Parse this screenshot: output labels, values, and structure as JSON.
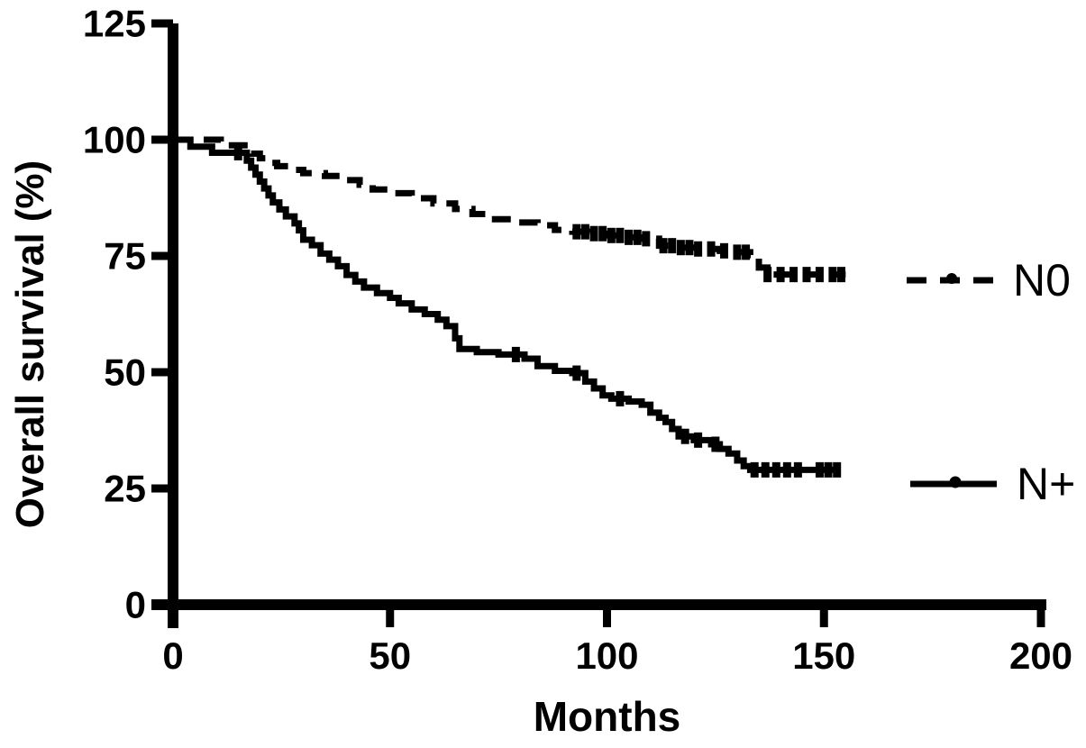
{
  "figure": {
    "background_color": "#ffffff",
    "ink_color": "#000000"
  },
  "chart_data": {
    "type": "line",
    "subtype": "kaplan-meier-step-survival",
    "title": "",
    "xlabel": "Months",
    "ylabel": "Overall survival (%)",
    "xlim": [
      0,
      200
    ],
    "ylim": [
      0,
      125
    ],
    "xticks": [
      0,
      50,
      100,
      150,
      200
    ],
    "yticks": [
      0,
      25,
      50,
      75,
      100,
      125
    ],
    "grid": false,
    "legend_position": "right",
    "series": [
      {
        "name": "N0",
        "line_style": "dashed",
        "color": "#000000",
        "points": [
          [
            0,
            100
          ],
          [
            10,
            100
          ],
          [
            11,
            98.8
          ],
          [
            17,
            98.8
          ],
          [
            18,
            97
          ],
          [
            20,
            96
          ],
          [
            22,
            95
          ],
          [
            24,
            94.3
          ],
          [
            27,
            93.5
          ],
          [
            30,
            92.8
          ],
          [
            35,
            92.2
          ],
          [
            39,
            91.3
          ],
          [
            43,
            90.3
          ],
          [
            46,
            89.3
          ],
          [
            50,
            88.5
          ],
          [
            55,
            87.4
          ],
          [
            60,
            86.3
          ],
          [
            65,
            85.1
          ],
          [
            69,
            84
          ],
          [
            73,
            82.9
          ],
          [
            78,
            82.2
          ],
          [
            84,
            81.6
          ],
          [
            88,
            80.6
          ],
          [
            92,
            80.2
          ],
          [
            96,
            79.8
          ],
          [
            100,
            79.4
          ],
          [
            104,
            79
          ],
          [
            108,
            78.7
          ],
          [
            112,
            77.2
          ],
          [
            116,
            76.8
          ],
          [
            121,
            76.5
          ],
          [
            126,
            76.1
          ],
          [
            130,
            75.8
          ],
          [
            133,
            75.2
          ],
          [
            135,
            72.5
          ],
          [
            137,
            71
          ],
          [
            155,
            71
          ]
        ],
        "censor_marks_months": [
          93,
          95,
          97,
          99,
          101,
          103,
          105,
          107,
          109,
          113,
          115,
          117,
          119,
          121,
          124,
          127,
          130,
          132,
          137,
          140,
          143,
          146,
          149,
          152,
          154
        ]
      },
      {
        "name": "N+",
        "line_style": "solid",
        "color": "#000000",
        "points": [
          [
            0,
            100
          ],
          [
            4,
            98.5
          ],
          [
            9,
            97.2
          ],
          [
            16,
            97.2
          ],
          [
            17,
            95.5
          ],
          [
            18,
            94
          ],
          [
            19,
            92.5
          ],
          [
            20,
            91
          ],
          [
            21,
            89.5
          ],
          [
            22,
            88
          ],
          [
            23,
            86.5
          ],
          [
            24.5,
            85
          ],
          [
            26,
            83.5
          ],
          [
            28,
            82
          ],
          [
            29,
            80.5
          ],
          [
            30,
            78.5
          ],
          [
            32,
            77.3
          ],
          [
            34,
            75.5
          ],
          [
            36,
            74.2
          ],
          [
            38,
            72.8
          ],
          [
            40,
            70.9
          ],
          [
            42,
            69.5
          ],
          [
            44,
            68.2
          ],
          [
            47,
            67
          ],
          [
            50,
            66
          ],
          [
            52,
            64.8
          ],
          [
            55,
            63.5
          ],
          [
            58,
            62.5
          ],
          [
            61,
            61.3
          ],
          [
            63,
            59.9
          ],
          [
            65,
            57.3
          ],
          [
            66,
            55
          ],
          [
            70,
            54.3
          ],
          [
            75,
            53.8
          ],
          [
            81,
            52.9
          ],
          [
            84,
            51.3
          ],
          [
            88,
            50.3
          ],
          [
            92,
            49.8
          ],
          [
            95,
            48
          ],
          [
            97,
            46.5
          ],
          [
            99,
            45
          ],
          [
            101,
            44.3
          ],
          [
            105,
            43.7
          ],
          [
            108,
            43
          ],
          [
            110,
            41.3
          ],
          [
            112,
            40.2
          ],
          [
            113.5,
            39.3
          ],
          [
            115,
            37.8
          ],
          [
            116.5,
            36.2
          ],
          [
            120,
            35.4
          ],
          [
            124,
            34.5
          ],
          [
            126,
            33.5
          ],
          [
            128,
            32.5
          ],
          [
            130,
            31
          ],
          [
            131.5,
            29.8
          ],
          [
            133,
            29
          ],
          [
            153,
            29
          ]
        ],
        "censor_marks_months": [
          15,
          79,
          93,
          103,
          118,
          121,
          125,
          134,
          136.5,
          139,
          141.5,
          144,
          149,
          151,
          153
        ]
      }
    ]
  }
}
